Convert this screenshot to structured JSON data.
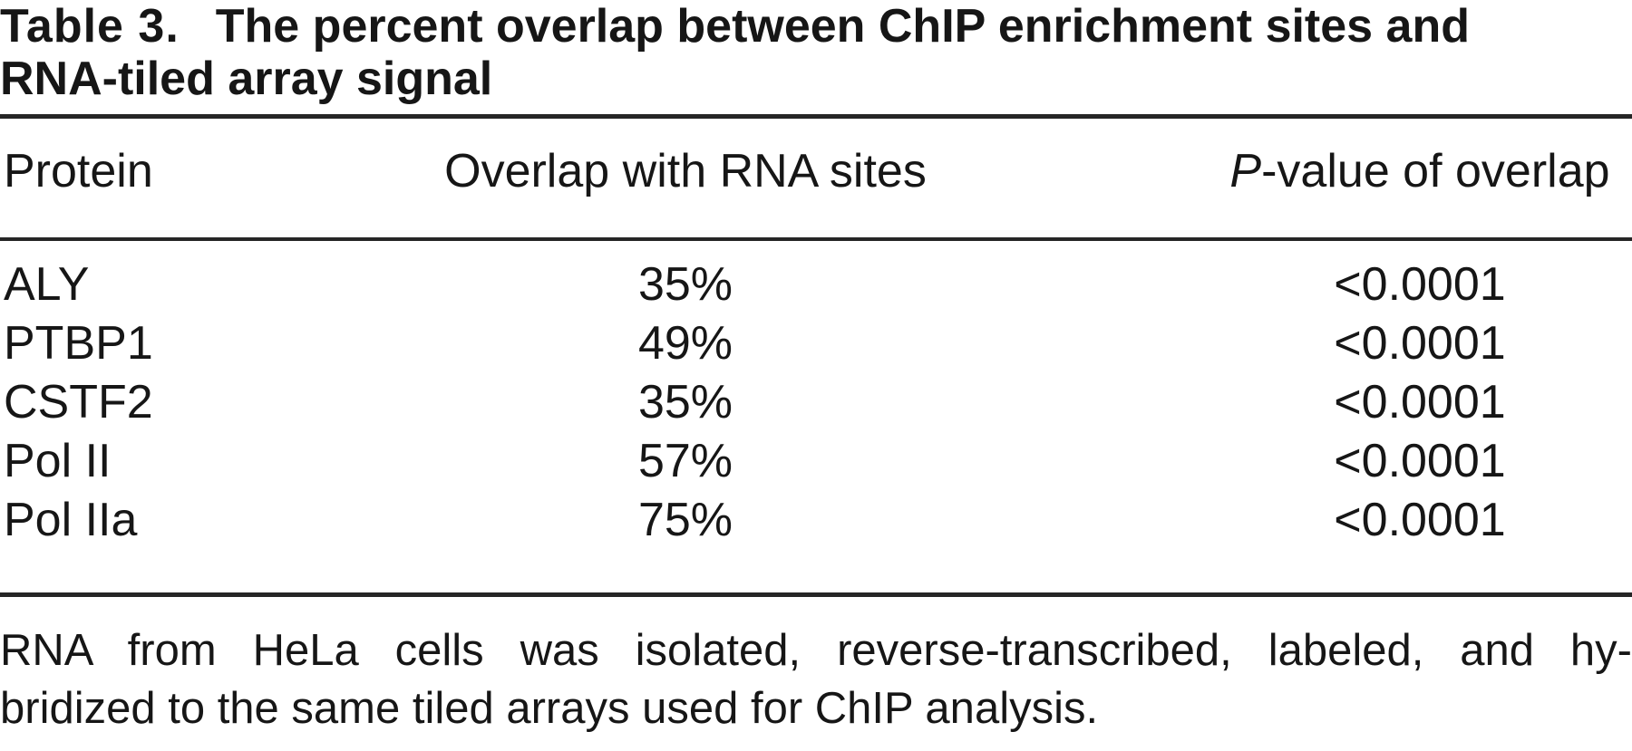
{
  "title": {
    "label": "Table 3.",
    "line1": "The percent overlap between ChIP enrichment sites and",
    "line2": "RNA-tiled array signal"
  },
  "table": {
    "header": {
      "protein": "Protein",
      "overlap": "Overlap with RNA sites",
      "pvalue_italic": "P",
      "pvalue_rest": "-value of overlap"
    },
    "rows": [
      {
        "protein": "ALY",
        "overlap": "35%",
        "p_value": "<0.0001"
      },
      {
        "protein": "PTBP1",
        "overlap": "49%",
        "p_value": "<0.0001"
      },
      {
        "protein": "CSTF2",
        "overlap": "35%",
        "p_value": "<0.0001"
      },
      {
        "protein": "Pol II",
        "overlap": "57%",
        "p_value": "<0.0001"
      },
      {
        "protein": "Pol IIa",
        "overlap": "75%",
        "p_value": "<0.0001"
      }
    ]
  },
  "footnote": {
    "line1": "RNA from HeLa cells was isolated, reverse-transcribed, labeled, and hy-",
    "line2": "bridized to the same tiled arrays used for ChIP analysis."
  },
  "colors": {
    "text": "#161616",
    "rule": "#262626",
    "background": "#ffffff"
  }
}
